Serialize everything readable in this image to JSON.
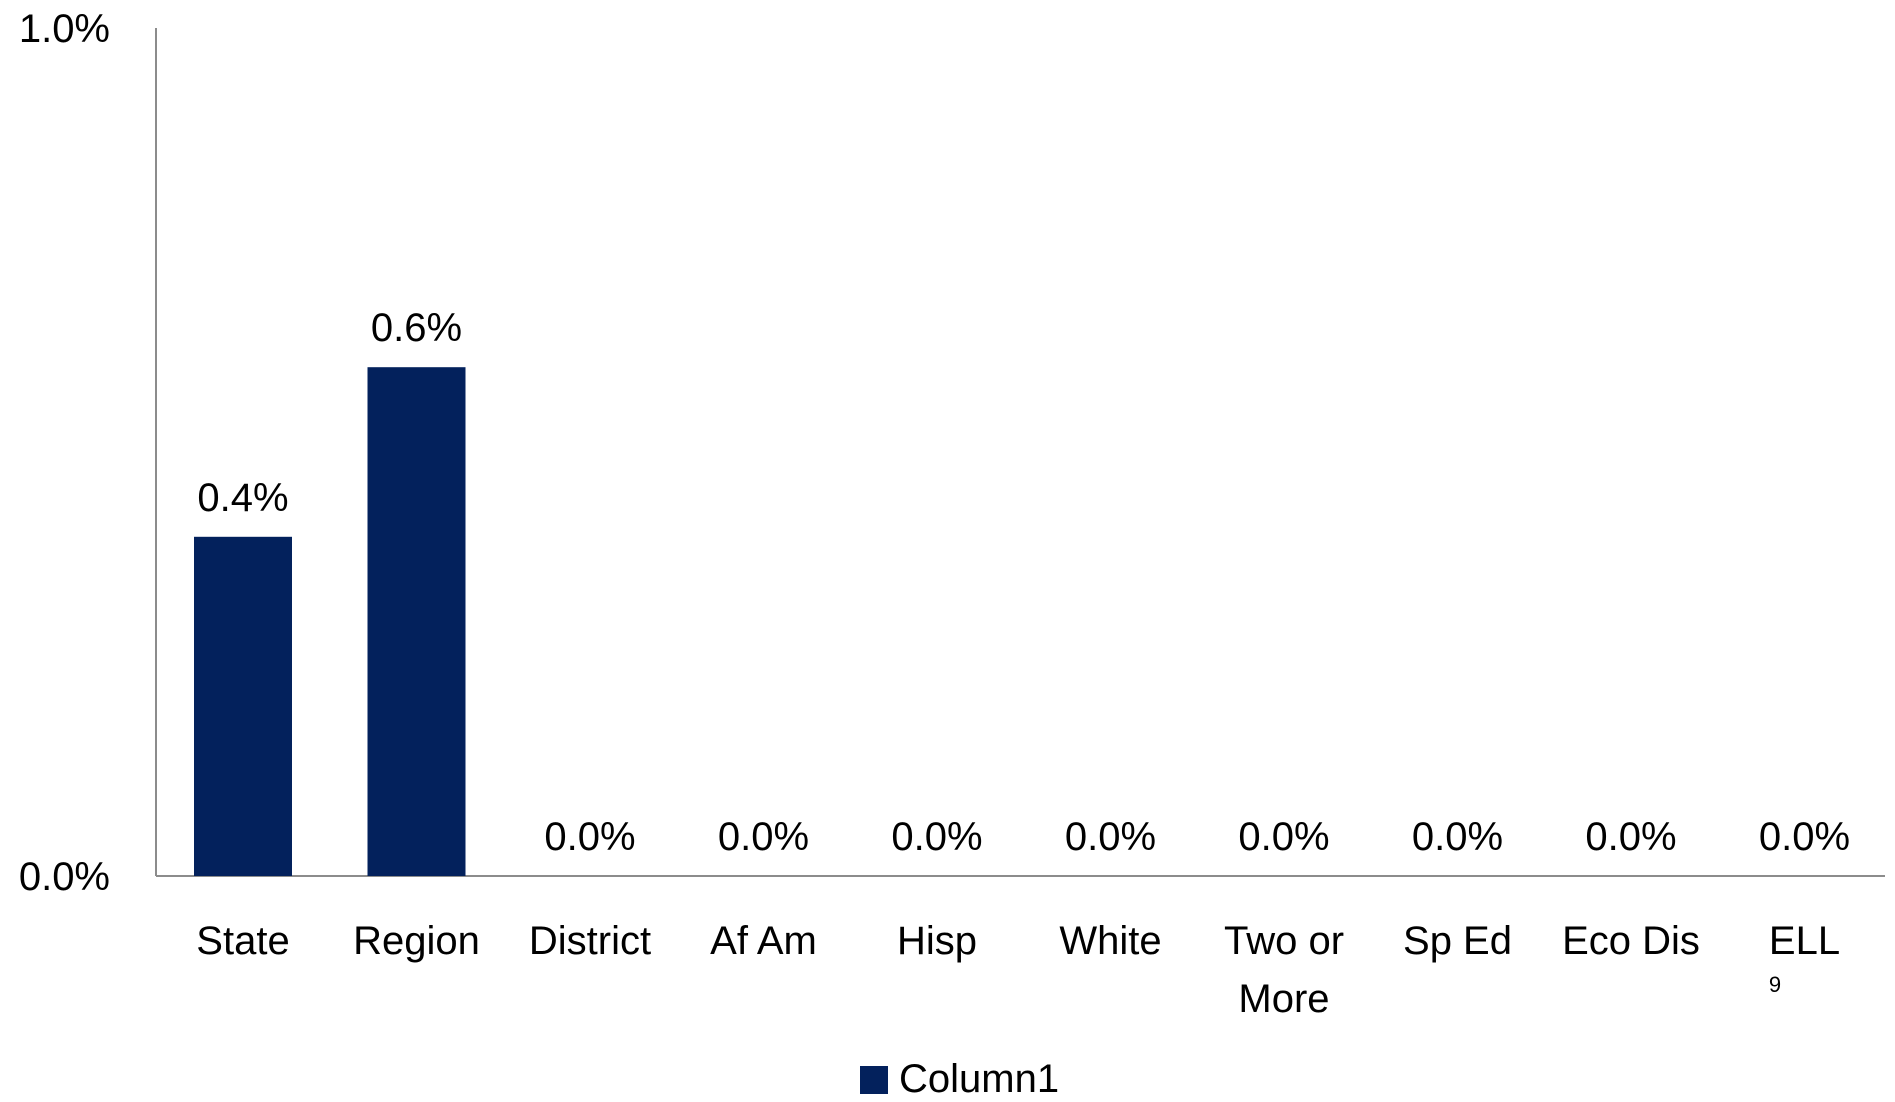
{
  "chart_data": {
    "type": "bar",
    "title": "",
    "xlabel": "",
    "ylabel": "",
    "ylim": [
      0,
      1.0
    ],
    "y_tick_labels": [
      "0.0%",
      "1.0%"
    ],
    "y_ticks": [
      0,
      1.0
    ],
    "categories": [
      "State",
      "Region",
      "District",
      "Af Am",
      "Hisp",
      "White",
      "Two or More",
      "Sp Ed",
      "Eco Dis",
      "ELL"
    ],
    "series": [
      {
        "name": "Column1",
        "color": "#03215c",
        "values": [
          0.4,
          0.6,
          0.0,
          0.0,
          0.0,
          0.0,
          0.0,
          0.0,
          0.0,
          0.0
        ],
        "data_labels": [
          "0.4%",
          "0.6%",
          "0.0%",
          "0.0%",
          "0.0%",
          "0.0%",
          "0.0%",
          "0.0%",
          "0.0%",
          "0.0%"
        ]
      }
    ],
    "legend": {
      "position": "bottom",
      "entries": [
        "Column1"
      ]
    },
    "grid": false
  },
  "footnote": "9"
}
